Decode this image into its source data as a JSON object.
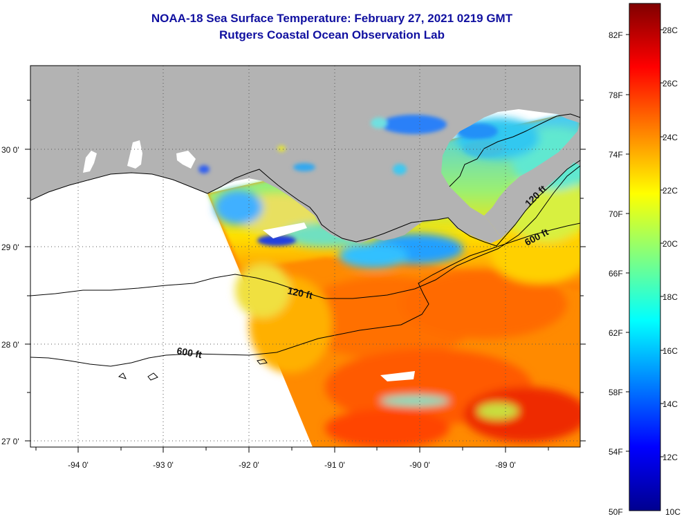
{
  "title": "NOAA-18 Sea Surface Temperature:  February 27, 2021 0219 GMT",
  "subtitle": "Rutgers Coastal Ocean Observation Lab",
  "map": {
    "lon_labels": [
      "-94 0'",
      "-93 0'",
      "-92 0'",
      "-91 0'",
      "-90 0'",
      "-89 0'"
    ],
    "lat_labels": [
      "30 0'",
      "29 0'",
      "28 0'",
      "27 0'"
    ],
    "contour_labels": [
      {
        "name": "contour-label-120ft-west",
        "text": "120 ft"
      },
      {
        "name": "contour-label-600ft-west",
        "text": "600 ft"
      },
      {
        "name": "contour-label-120ft-east",
        "text": "120 ft"
      },
      {
        "name": "contour-label-600ft-east",
        "text": "600 ft"
      }
    ],
    "colors": {
      "land": "#b3b3b3",
      "nodata": "#ffffff",
      "contour": "#000000"
    }
  },
  "colorbar": {
    "fahrenheit_labels": [
      "82F",
      "78F",
      "74F",
      "70F",
      "66F",
      "62F",
      "58F",
      "54F",
      "50F"
    ],
    "celsius_labels": [
      "28C",
      "26C",
      "24C",
      "22C",
      "20C",
      "18C",
      "16C",
      "14C",
      "12C",
      "10C"
    ],
    "colormap": [
      "#00008f",
      "#0000ff",
      "#0080ff",
      "#00ffff",
      "#80ff80",
      "#ffff00",
      "#ff8000",
      "#ff0000",
      "#800000"
    ]
  }
}
